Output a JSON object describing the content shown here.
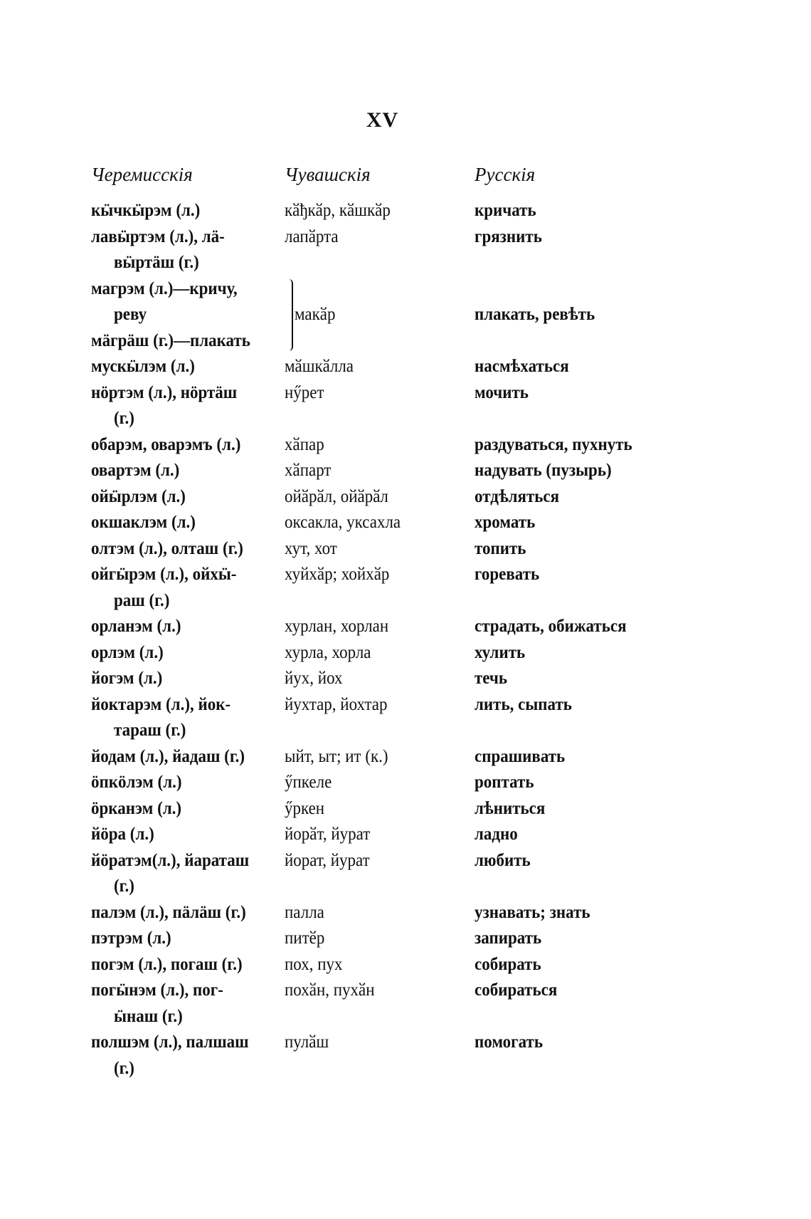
{
  "page_number": "XV",
  "headers": {
    "cheremis": "Черемисскія",
    "chuvash": "Чувашскія",
    "russian": "Русскія"
  },
  "entries": [
    {
      "cheremis": [
        "кӹчкӹрэм (л.)"
      ],
      "chuvash": "кӑђкӑр, кӑшкӑр",
      "russian": "кричать"
    },
    {
      "cheremis": [
        "лавӹртэм (л.), лä-",
        "вӹртäш (г.)"
      ],
      "chuvash": "лапӑрта",
      "russian": "грязнить"
    },
    {
      "group": true,
      "cheremis": [
        "магрэм (л.)—кричу,",
        "реву",
        "мäгрäш (г.)—плакать"
      ],
      "chuvash": "макӑр",
      "russian": "плакать, ревѣть"
    },
    {
      "cheremis": [
        "мускӹлэм (л.)"
      ],
      "chuvash": "мӑшкӑлла",
      "russian": "насмѣхаться"
    },
    {
      "cheremis": [
        "нöртэм (л.), нöртäш",
        "(г.)"
      ],
      "chuvash": "нӳрет",
      "russian": "мочить"
    },
    {
      "cheremis": [
        "обарэм, оварэмъ (л.)"
      ],
      "chuvash": "хӑпар",
      "russian": "раздуваться, пухнуть"
    },
    {
      "cheremis": [
        "овартэм (л.)"
      ],
      "chuvash": "хӑпарт",
      "russian": "надувать (пузырь)"
    },
    {
      "cheremis": [
        "ойӹрлэм (л.)"
      ],
      "chuvash": "ойӑрӑл, ойӑрӑл",
      "russian": "отдѣляться"
    },
    {
      "cheremis": [
        "окшаклэм (л.)"
      ],
      "chuvash": "оксакла, уксахла",
      "russian": "хромать"
    },
    {
      "cheremis": [
        "олтэм (л.), олташ (г.)"
      ],
      "chuvash": "хут, хот",
      "russian": "топить"
    },
    {
      "cheremis": [
        "ойгӹрэм (л.), ойхӹ-",
        "раш (г.)"
      ],
      "chuvash": "хуйхӑр; хойхӑр",
      "russian": "горевать"
    },
    {
      "cheremis": [
        "орланэм (л.)"
      ],
      "chuvash": "хурлан, хорлан",
      "russian": "страдать, обижаться"
    },
    {
      "cheremis": [
        "орлэм (л.)"
      ],
      "chuvash": "хурла, хорла",
      "russian": "хулить"
    },
    {
      "cheremis": [
        "йогэм (л.)"
      ],
      "chuvash": "йух, йох",
      "russian": "течь"
    },
    {
      "cheremis": [
        "йоктарэм (л.), йок-",
        "тараш (г.)"
      ],
      "chuvash": "йухтар, йохтар",
      "russian": "лить, сыпать"
    },
    {
      "cheremis": [
        "йодам (л.), йадаш (г.)"
      ],
      "chuvash": "ыйт, ыт; ит (к.)",
      "russian": "спрашивать"
    },
    {
      "cheremis": [
        "öпкöлэм (л.)"
      ],
      "chuvash": "ӳпкеле",
      "russian": "роптать"
    },
    {
      "cheremis": [
        "öрканэм (л.)"
      ],
      "chuvash": "ӳркен",
      "russian": "лѣниться"
    },
    {
      "cheremis": [
        "йöра (л.)"
      ],
      "chuvash": "йорӑт, йурат",
      "russian": "ладно"
    },
    {
      "cheremis": [
        "йöратэм(л.), йараташ",
        "(г.)"
      ],
      "chuvash": "йорат, йурат",
      "russian": "любить"
    },
    {
      "cheremis": [
        "палэм (л.), пäлäш (г.)"
      ],
      "chuvash": "палла",
      "russian": "узнавать; знать"
    },
    {
      "cheremis": [
        "пэтрэм (л.)"
      ],
      "chuvash": "питӗр",
      "russian": "запирать"
    },
    {
      "cheremis": [
        "погэм (л.), погаш (г.)"
      ],
      "chuvash": "пох, пух",
      "russian": "собирать"
    },
    {
      "cheremis": [
        "погӹнэм (л.), пог-",
        "ӹнаш (г.)"
      ],
      "chuvash": "похӑн, пухӑн",
      "russian": "собираться"
    },
    {
      "cheremis": [
        "полшэм (л.), палшаш",
        "(г.)"
      ],
      "chuvash": "пулӑш",
      "russian": "помогать"
    }
  ]
}
